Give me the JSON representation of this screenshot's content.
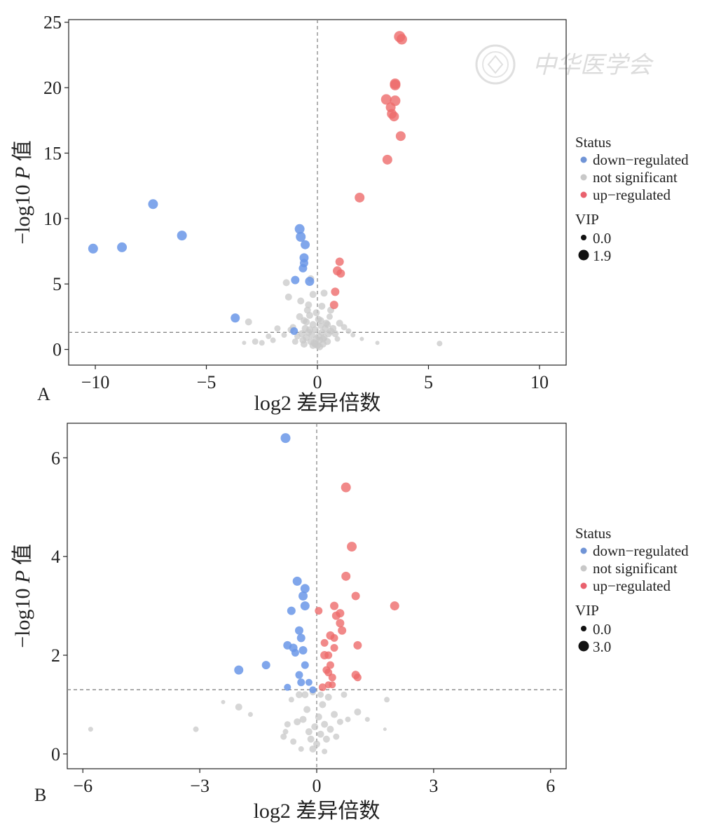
{
  "watermark": {
    "text": "中华医学会"
  },
  "legend_labels": {
    "status_title": "Status",
    "status_items": [
      "down−regulated",
      "not significant",
      "up−regulated"
    ],
    "vip_title": "VIP"
  },
  "colors": {
    "down": "#6a96e8",
    "ns": "#c8c8c8",
    "up": "#ee6b6b",
    "legend_down": "#7094d6",
    "legend_up": "#e9616e"
  },
  "chart_data": [
    {
      "type": "scatter",
      "panel_label": "A",
      "xlabel": "log2 差异倍数",
      "ylabel": "−log10 P 值",
      "xlim": [
        -11.2,
        11.2
      ],
      "ylim": [
        -1.2,
        25.2
      ],
      "xticks": [
        -10,
        -5,
        0,
        5,
        10
      ],
      "xtick_labels": [
        "−10",
        "−5",
        "0",
        "5",
        "10"
      ],
      "yticks": [
        0,
        5,
        10,
        15,
        20,
        25
      ],
      "ytick_labels": [
        "0",
        "5",
        "10",
        "15",
        "20",
        "25"
      ],
      "vline_x": 0,
      "hline_y": 1.3,
      "grid": false,
      "legend": {
        "vip_min": "0.0",
        "vip_max": "1.9",
        "placement": "right"
      },
      "series": {
        "down": [
          [
            -10.1,
            7.7,
            1.4
          ],
          [
            -8.8,
            7.8,
            1.4
          ],
          [
            -7.4,
            11.1,
            1.4
          ],
          [
            -6.1,
            8.7,
            1.4
          ],
          [
            -3.7,
            2.4,
            1.3
          ],
          [
            -0.8,
            9.2,
            1.4
          ],
          [
            -0.75,
            8.6,
            1.4
          ],
          [
            -0.55,
            8.0,
            1.3
          ],
          [
            -0.6,
            7.0,
            1.3
          ],
          [
            -0.6,
            6.6,
            1.2
          ],
          [
            -0.65,
            6.2,
            1.2
          ],
          [
            -1.0,
            5.3,
            1.2
          ],
          [
            -0.35,
            5.2,
            1.3
          ],
          [
            -1.05,
            1.4,
            1.1
          ]
        ],
        "up": [
          [
            3.7,
            23.9,
            1.6
          ],
          [
            3.8,
            23.7,
            1.5
          ],
          [
            3.5,
            20.3,
            1.5
          ],
          [
            3.5,
            20.2,
            1.5
          ],
          [
            3.1,
            19.1,
            1.5
          ],
          [
            3.5,
            19.0,
            1.5
          ],
          [
            3.3,
            18.5,
            1.4
          ],
          [
            3.35,
            18.0,
            1.4
          ],
          [
            3.45,
            17.8,
            1.4
          ],
          [
            3.75,
            16.3,
            1.4
          ],
          [
            3.15,
            14.5,
            1.4
          ],
          [
            1.9,
            11.6,
            1.4
          ],
          [
            1.0,
            6.7,
            1.2
          ],
          [
            0.9,
            6.0,
            1.3
          ],
          [
            1.05,
            5.8,
            1.2
          ],
          [
            0.8,
            4.4,
            1.2
          ],
          [
            0.75,
            3.4,
            1.2
          ]
        ],
        "ns": [
          [
            5.5,
            0.45,
            0.8
          ],
          [
            2.7,
            0.5,
            0.6
          ],
          [
            2.0,
            0.8,
            0.6
          ],
          [
            1.6,
            1.1,
            0.7
          ],
          [
            1.4,
            1.4,
            0.8
          ],
          [
            1.2,
            1.7,
            0.9
          ],
          [
            1.0,
            2.0,
            1.0
          ],
          [
            0.9,
            0.8,
            0.8
          ],
          [
            0.7,
            1.6,
            1.0
          ],
          [
            0.6,
            3.0,
            1.0
          ],
          [
            0.55,
            2.5,
            0.9
          ],
          [
            0.5,
            1.2,
            1.0
          ],
          [
            0.45,
            0.6,
            1.0
          ],
          [
            0.4,
            2.0,
            1.0
          ],
          [
            0.35,
            1.6,
            1.0
          ],
          [
            0.3,
            0.9,
            1.0
          ],
          [
            0.25,
            0.4,
            1.0
          ],
          [
            0.2,
            1.3,
            1.0
          ],
          [
            0.15,
            2.2,
            1.0
          ],
          [
            0.1,
            0.7,
            1.0
          ],
          [
            0.05,
            1.0,
            1.0
          ],
          [
            0.0,
            0.3,
            1.0
          ],
          [
            -0.05,
            0.8,
            1.0
          ],
          [
            -0.1,
            1.5,
            1.0
          ],
          [
            -0.15,
            0.5,
            1.0
          ],
          [
            -0.2,
            1.9,
            1.0
          ],
          [
            -0.25,
            1.1,
            1.0
          ],
          [
            -0.3,
            0.6,
            1.0
          ],
          [
            -0.35,
            2.6,
            1.0
          ],
          [
            -0.4,
            1.3,
            1.0
          ],
          [
            -0.45,
            3.0,
            1.0
          ],
          [
            -0.5,
            0.9,
            1.0
          ],
          [
            -0.55,
            1.6,
            1.0
          ],
          [
            -0.6,
            2.2,
            1.0
          ],
          [
            -0.65,
            0.7,
            1.0
          ],
          [
            -0.7,
            1.2,
            1.0
          ],
          [
            -0.75,
            3.7,
            1.0
          ],
          [
            -0.8,
            2.5,
            1.0
          ],
          [
            -0.9,
            1.0,
            0.9
          ],
          [
            -1.0,
            0.6,
            0.9
          ],
          [
            -1.1,
            1.7,
            0.9
          ],
          [
            -1.2,
            1.5,
            0.9
          ],
          [
            -1.3,
            4.0,
            1.0
          ],
          [
            -1.4,
            5.1,
            1.0
          ],
          [
            -1.5,
            1.1,
            0.8
          ],
          [
            -1.8,
            1.6,
            0.9
          ],
          [
            -2.0,
            0.7,
            0.8
          ],
          [
            -2.2,
            1.0,
            0.8
          ],
          [
            -2.5,
            0.5,
            0.8
          ],
          [
            -2.8,
            0.6,
            0.9
          ],
          [
            -3.1,
            2.1,
            1.0
          ],
          [
            -3.3,
            0.5,
            0.6
          ],
          [
            -0.3,
            5.4,
            1.0
          ],
          [
            -0.2,
            4.2,
            1.0
          ],
          [
            -0.4,
            3.4,
            1.0
          ],
          [
            0.3,
            4.3,
            1.0
          ],
          [
            0.2,
            3.3,
            1.0
          ],
          [
            0.15,
            1.8,
            0.9
          ],
          [
            -0.05,
            2.8,
            1.0
          ],
          [
            0.05,
            2.3,
            1.0
          ],
          [
            -0.1,
            0.4,
            1.0
          ],
          [
            0.1,
            0.2,
            1.0
          ],
          [
            -0.2,
            0.3,
            1.0
          ],
          [
            0.25,
            0.8,
            1.0
          ],
          [
            -0.35,
            1.5,
            1.0
          ],
          [
            0.45,
            1.9,
            1.0
          ],
          [
            -0.5,
            2.1,
            1.0
          ],
          [
            0.6,
            1.4,
            1.0
          ],
          [
            -0.6,
            0.4,
            1.0
          ],
          [
            0.8,
            1.2,
            1.0
          ]
        ]
      }
    },
    {
      "type": "scatter",
      "panel_label": "B",
      "xlabel": "log2 差异倍数",
      "ylabel": "−log10 P 值",
      "xlim": [
        -6.4,
        6.4
      ],
      "ylim": [
        -0.3,
        6.7
      ],
      "xticks": [
        -6,
        -3,
        0,
        3,
        6
      ],
      "xtick_labels": [
        "−6",
        "−3",
        "0",
        "3",
        "6"
      ],
      "yticks": [
        0,
        2,
        4,
        6
      ],
      "ytick_labels": [
        "0",
        "2",
        "4",
        "6"
      ],
      "vline_x": 0,
      "hline_y": 1.3,
      "grid": false,
      "legend": {
        "vip_min": "0.0",
        "vip_max": "3.0",
        "placement": "right"
      },
      "series": {
        "down": [
          [
            -0.8,
            6.4,
            1.4
          ],
          [
            -0.5,
            3.5,
            1.3
          ],
          [
            -0.3,
            3.35,
            1.3
          ],
          [
            -0.35,
            3.2,
            1.3
          ],
          [
            -0.3,
            3.0,
            1.3
          ],
          [
            -0.65,
            2.9,
            1.2
          ],
          [
            -0.45,
            2.5,
            1.2
          ],
          [
            -0.4,
            2.35,
            1.2
          ],
          [
            -0.75,
            2.2,
            1.2
          ],
          [
            -0.6,
            2.15,
            1.2
          ],
          [
            -0.35,
            2.1,
            1.2
          ],
          [
            -0.55,
            2.05,
            1.1
          ],
          [
            -0.3,
            1.8,
            1.1
          ],
          [
            -1.3,
            1.8,
            1.2
          ],
          [
            -2.0,
            1.7,
            1.3
          ],
          [
            -0.45,
            1.6,
            1.1
          ],
          [
            -0.4,
            1.45,
            1.1
          ],
          [
            -0.2,
            1.45,
            1.0
          ],
          [
            -0.75,
            1.35,
            1.0
          ],
          [
            -0.1,
            1.3,
            1.0
          ]
        ],
        "up": [
          [
            0.75,
            5.4,
            1.4
          ],
          [
            0.9,
            4.2,
            1.4
          ],
          [
            0.75,
            3.6,
            1.3
          ],
          [
            1.0,
            3.2,
            1.2
          ],
          [
            2.0,
            3.0,
            1.3
          ],
          [
            0.45,
            3.0,
            1.2
          ],
          [
            0.05,
            2.9,
            1.1
          ],
          [
            0.6,
            2.85,
            1.2
          ],
          [
            0.5,
            2.8,
            1.2
          ],
          [
            0.6,
            2.65,
            1.2
          ],
          [
            0.65,
            2.5,
            1.2
          ],
          [
            0.35,
            2.4,
            1.2
          ],
          [
            0.45,
            2.35,
            1.1
          ],
          [
            0.2,
            2.25,
            1.1
          ],
          [
            1.05,
            2.2,
            1.2
          ],
          [
            0.45,
            2.15,
            1.1
          ],
          [
            0.2,
            2.0,
            1.2
          ],
          [
            0.3,
            2.0,
            1.1
          ],
          [
            0.35,
            1.8,
            1.1
          ],
          [
            0.25,
            1.7,
            1.1
          ],
          [
            0.3,
            1.65,
            1.1
          ],
          [
            0.4,
            1.55,
            1.1
          ],
          [
            1.0,
            1.6,
            1.2
          ],
          [
            1.05,
            1.55,
            1.1
          ],
          [
            0.15,
            1.35,
            1.1
          ],
          [
            0.3,
            1.4,
            1.0
          ],
          [
            0.4,
            1.4,
            1.0
          ]
        ],
        "ns": [
          [
            -5.8,
            0.5,
            0.7
          ],
          [
            -3.1,
            0.5,
            0.8
          ],
          [
            -2.4,
            1.05,
            0.6
          ],
          [
            -2.0,
            0.95,
            1.0
          ],
          [
            -1.7,
            0.8,
            0.7
          ],
          [
            -0.85,
            0.35,
            0.9
          ],
          [
            -0.8,
            0.45,
            0.8
          ],
          [
            -0.75,
            0.6,
            0.9
          ],
          [
            -0.65,
            1.1,
            0.8
          ],
          [
            -0.5,
            0.65,
            1.0
          ],
          [
            -0.45,
            1.2,
            1.0
          ],
          [
            -0.35,
            0.7,
            1.0
          ],
          [
            -0.3,
            1.2,
            1.0
          ],
          [
            -0.25,
            0.9,
            1.0
          ],
          [
            -0.2,
            0.45,
            1.0
          ],
          [
            -0.15,
            0.3,
            1.0
          ],
          [
            -0.1,
            0.1,
            1.0
          ],
          [
            -0.05,
            0.55,
            1.0
          ],
          [
            0.0,
            0.2,
            1.0
          ],
          [
            0.05,
            0.75,
            1.0
          ],
          [
            0.1,
            0.4,
            1.0
          ],
          [
            0.15,
            1.0,
            1.0
          ],
          [
            0.2,
            0.6,
            1.0
          ],
          [
            0.25,
            0.3,
            1.0
          ],
          [
            0.3,
            1.15,
            1.0
          ],
          [
            0.35,
            0.5,
            1.0
          ],
          [
            0.45,
            0.8,
            1.0
          ],
          [
            0.5,
            0.35,
            0.9
          ],
          [
            0.6,
            0.65,
            0.9
          ],
          [
            0.7,
            1.2,
            0.9
          ],
          [
            0.8,
            0.7,
            0.8
          ],
          [
            1.05,
            0.85,
            1.0
          ],
          [
            1.3,
            0.7,
            0.7
          ],
          [
            1.8,
            1.1,
            0.8
          ],
          [
            1.75,
            0.5,
            0.5
          ],
          [
            -0.1,
            1.25,
            0.9
          ],
          [
            0.1,
            1.2,
            0.9
          ],
          [
            -0.4,
            0.1,
            0.8
          ],
          [
            0.2,
            0.05,
            0.8
          ],
          [
            -0.6,
            0.25,
            0.9
          ]
        ]
      }
    }
  ]
}
